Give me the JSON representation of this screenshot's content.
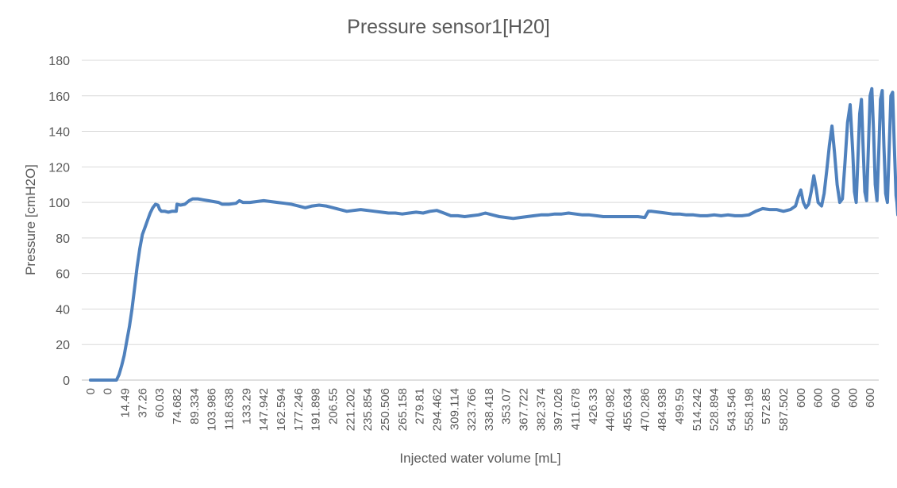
{
  "chart_data": {
    "type": "line",
    "title": "Pressure sensor1[H20]",
    "xlabel": "Injected water volume [mL]",
    "ylabel": "Pressure [cmH2O]",
    "ylim": [
      0,
      180
    ],
    "yticks": [
      0,
      20,
      40,
      60,
      80,
      100,
      120,
      140,
      160,
      180
    ],
    "grid": "horizontal",
    "legend": "none",
    "categories": [
      "0",
      "0",
      "14.49",
      "37.26",
      "60.03",
      "74.682",
      "89.334",
      "103.986",
      "118.638",
      "133.29",
      "147.942",
      "162.594",
      "177.246",
      "191.898",
      "206.55",
      "221.202",
      "235.854",
      "250.506",
      "265.158",
      "279.81",
      "294.462",
      "309.114",
      "323.766",
      "338.418",
      "353.07",
      "367.722",
      "382.374",
      "397.026",
      "411.678",
      "426.33",
      "440.982",
      "455.634",
      "470.286",
      "484.938",
      "499.59",
      "514.242",
      "528.894",
      "543.546",
      "558.198",
      "572.85",
      "587.502",
      "600",
      "600",
      "600",
      "600",
      "600"
    ],
    "series": [
      {
        "color": "#4f81bd",
        "points": [
          [
            0,
            0
          ],
          [
            1,
            0
          ],
          [
            1.5,
            0
          ],
          [
            1.65,
            3
          ],
          [
            1.8,
            8
          ],
          [
            1.95,
            14
          ],
          [
            2.1,
            22
          ],
          [
            2.25,
            30
          ],
          [
            2.4,
            40
          ],
          [
            2.55,
            52
          ],
          [
            2.7,
            64
          ],
          [
            2.85,
            74
          ],
          [
            3.0,
            82
          ],
          [
            3.15,
            86
          ],
          [
            3.3,
            90
          ],
          [
            3.45,
            94
          ],
          [
            3.6,
            97
          ],
          [
            3.75,
            99
          ],
          [
            3.9,
            98.5
          ],
          [
            4.0,
            96
          ],
          [
            4.1,
            95
          ],
          [
            4.3,
            95
          ],
          [
            4.5,
            94.5
          ],
          [
            4.7,
            95
          ],
          [
            4.95,
            95
          ],
          [
            5.0,
            99
          ],
          [
            5.2,
            98.5
          ],
          [
            5.45,
            99
          ],
          [
            5.7,
            101
          ],
          [
            5.9,
            102
          ],
          [
            6.2,
            102
          ],
          [
            6.5,
            101.5
          ],
          [
            6.8,
            101
          ],
          [
            7.1,
            100.5
          ],
          [
            7.4,
            100
          ],
          [
            7.6,
            99
          ],
          [
            8.0,
            99
          ],
          [
            8.4,
            99.5
          ],
          [
            8.6,
            101
          ],
          [
            8.8,
            100
          ],
          [
            9.2,
            100
          ],
          [
            9.6,
            100.5
          ],
          [
            10.0,
            101
          ],
          [
            10.4,
            100.5
          ],
          [
            10.8,
            100
          ],
          [
            11.2,
            99.5
          ],
          [
            11.6,
            99
          ],
          [
            12.0,
            98
          ],
          [
            12.4,
            97
          ],
          [
            12.8,
            98
          ],
          [
            13.2,
            98.5
          ],
          [
            13.6,
            98
          ],
          [
            14.0,
            97
          ],
          [
            14.4,
            96
          ],
          [
            14.8,
            95
          ],
          [
            15.2,
            95.5
          ],
          [
            15.6,
            96
          ],
          [
            16.0,
            95.5
          ],
          [
            16.4,
            95
          ],
          [
            16.8,
            94.5
          ],
          [
            17.2,
            94
          ],
          [
            17.6,
            94
          ],
          [
            18.0,
            93.5
          ],
          [
            18.4,
            94
          ],
          [
            18.8,
            94.5
          ],
          [
            19.2,
            94
          ],
          [
            19.6,
            95
          ],
          [
            20.0,
            95.5
          ],
          [
            20.4,
            94
          ],
          [
            20.8,
            92.5
          ],
          [
            21.2,
            92.5
          ],
          [
            21.6,
            92
          ],
          [
            22.0,
            92.5
          ],
          [
            22.4,
            93
          ],
          [
            22.8,
            94
          ],
          [
            23.2,
            93
          ],
          [
            23.6,
            92
          ],
          [
            24.0,
            91.5
          ],
          [
            24.4,
            91
          ],
          [
            24.8,
            91.5
          ],
          [
            25.2,
            92
          ],
          [
            25.6,
            92.5
          ],
          [
            26.0,
            93
          ],
          [
            26.4,
            93
          ],
          [
            26.8,
            93.5
          ],
          [
            27.2,
            93.5
          ],
          [
            27.6,
            94
          ],
          [
            28.0,
            93.5
          ],
          [
            28.4,
            93
          ],
          [
            28.8,
            93
          ],
          [
            29.2,
            92.5
          ],
          [
            29.6,
            92
          ],
          [
            30.0,
            92
          ],
          [
            30.4,
            92
          ],
          [
            30.8,
            92
          ],
          [
            31.2,
            92
          ],
          [
            31.6,
            92
          ],
          [
            32.0,
            91.5
          ],
          [
            32.2,
            95
          ],
          [
            32.4,
            95
          ],
          [
            32.8,
            94.5
          ],
          [
            33.2,
            94
          ],
          [
            33.6,
            93.5
          ],
          [
            34.0,
            93.5
          ],
          [
            34.4,
            93
          ],
          [
            34.8,
            93
          ],
          [
            35.2,
            92.5
          ],
          [
            35.6,
            92.5
          ],
          [
            36.0,
            93
          ],
          [
            36.4,
            92.5
          ],
          [
            36.8,
            93
          ],
          [
            37.2,
            92.5
          ],
          [
            37.6,
            92.5
          ],
          [
            38.0,
            93
          ],
          [
            38.4,
            95
          ],
          [
            38.8,
            96.5
          ],
          [
            39.2,
            96
          ],
          [
            39.6,
            96
          ],
          [
            40.0,
            95
          ],
          [
            40.4,
            96
          ],
          [
            40.7,
            98
          ],
          [
            40.85,
            103
          ],
          [
            41.0,
            107
          ],
          [
            41.15,
            100
          ],
          [
            41.3,
            97
          ],
          [
            41.45,
            99
          ],
          [
            41.6,
            106
          ],
          [
            41.75,
            115
          ],
          [
            41.9,
            107
          ],
          [
            42.0,
            100
          ],
          [
            42.2,
            98
          ],
          [
            42.35,
            105
          ],
          [
            42.5,
            118
          ],
          [
            42.65,
            132
          ],
          [
            42.8,
            143
          ],
          [
            42.95,
            128
          ],
          [
            43.1,
            110
          ],
          [
            43.25,
            100
          ],
          [
            43.4,
            102
          ],
          [
            43.55,
            122
          ],
          [
            43.7,
            145
          ],
          [
            43.85,
            155
          ],
          [
            44.0,
            128
          ],
          [
            44.1,
            106
          ],
          [
            44.2,
            100
          ],
          [
            44.3,
            125
          ],
          [
            44.4,
            150
          ],
          [
            44.5,
            158
          ],
          [
            44.6,
            130
          ],
          [
            44.7,
            106
          ],
          [
            44.8,
            101
          ],
          [
            44.9,
            130
          ],
          [
            45.0,
            160
          ],
          [
            45.1,
            164
          ],
          [
            45.2,
            140
          ],
          [
            45.3,
            110
          ],
          [
            45.4,
            101
          ],
          [
            45.5,
            128
          ],
          [
            45.6,
            158
          ],
          [
            45.7,
            163
          ],
          [
            45.8,
            132
          ],
          [
            45.9,
            105
          ],
          [
            46.0,
            100
          ],
          [
            46.1,
            130
          ],
          [
            46.2,
            160
          ],
          [
            46.3,
            162
          ],
          [
            46.4,
            132
          ],
          [
            46.5,
            104
          ],
          [
            46.55,
            100
          ],
          [
            46.6,
            93
          ],
          [
            46.7,
            92
          ],
          [
            46.8,
            90
          ],
          [
            46.85,
            88
          ],
          [
            46.9,
            92
          ],
          [
            47.0,
            93
          ]
        ]
      }
    ]
  }
}
